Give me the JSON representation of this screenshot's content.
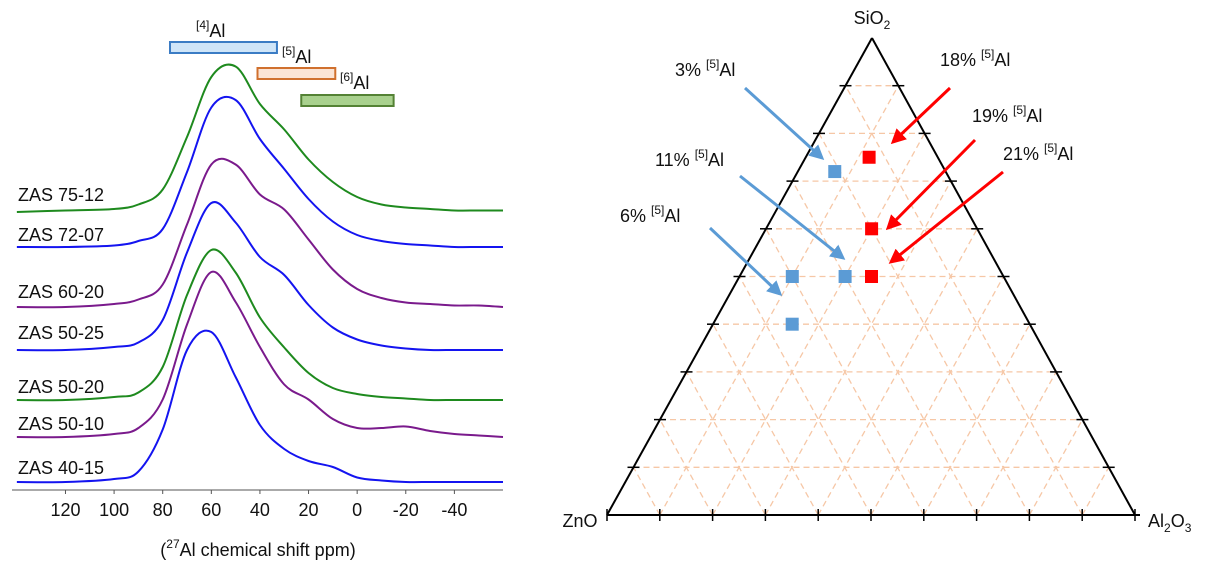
{
  "chart_data": [
    {
      "type": "spectra",
      "x": [
        140,
        120,
        100,
        90,
        80,
        70,
        60,
        50,
        40,
        30,
        20,
        10,
        0,
        -10,
        -20,
        -30,
        -40,
        -50,
        -60
      ],
      "xlim": [
        142,
        -60
      ],
      "xticks": [
        120,
        100,
        80,
        60,
        40,
        20,
        0,
        -20,
        -40
      ],
      "xlabel": [
        "(",
        "27",
        "Al chemical shift ppm)"
      ],
      "series": [
        {
          "name": "ZAS 75-12",
          "color": "#1e8a1e",
          "values": [
            0,
            0.01,
            0.02,
            0.05,
            0.15,
            0.5,
            0.9,
            0.97,
            0.72,
            0.55,
            0.35,
            0.2,
            0.1,
            0.05,
            0.03,
            0.02,
            0.01,
            0.01,
            0.01
          ]
        },
        {
          "name": "ZAS 72-07",
          "color": "#1414f0",
          "values": [
            0,
            0,
            0.01,
            0.04,
            0.12,
            0.5,
            0.93,
            0.98,
            0.72,
            0.52,
            0.32,
            0.17,
            0.08,
            0.04,
            0.02,
            0.01,
            0,
            0,
            0
          ]
        },
        {
          "name": "ZAS 60-20",
          "color": "#7a1a8c",
          "values": [
            0,
            0,
            0.02,
            0.05,
            0.15,
            0.55,
            0.95,
            0.95,
            0.75,
            0.65,
            0.45,
            0.25,
            0.12,
            0.06,
            0.03,
            0.02,
            0.01,
            0.01,
            0
          ]
        },
        {
          "name": "ZAS 50-25",
          "color": "#1414f0",
          "values": [
            0,
            0,
            0.02,
            0.05,
            0.2,
            0.65,
            0.98,
            0.85,
            0.62,
            0.5,
            0.3,
            0.15,
            0.07,
            0.03,
            0.01,
            0,
            0,
            0,
            0
          ]
        },
        {
          "name": "ZAS 50-20",
          "color": "#1e8a1e",
          "values": [
            0,
            0,
            0.02,
            0.05,
            0.22,
            0.7,
            1.0,
            0.85,
            0.55,
            0.35,
            0.18,
            0.08,
            0.04,
            0.02,
            0.01,
            0,
            0,
            0,
            0
          ]
        },
        {
          "name": "ZAS 50-10",
          "color": "#7a1a8c",
          "values": [
            0,
            0,
            0.02,
            0.06,
            0.25,
            0.75,
            1.1,
            0.9,
            0.6,
            0.35,
            0.25,
            0.12,
            0.06,
            0.06,
            0.07,
            0.04,
            0.02,
            0.01,
            0
          ]
        },
        {
          "name": "ZAS 40-15",
          "color": "#1414f0",
          "values": [
            0,
            0,
            0.02,
            0.07,
            0.35,
            0.88,
            1.0,
            0.7,
            0.38,
            0.22,
            0.14,
            0.1,
            0.03,
            0.01,
            0,
            0,
            0,
            0,
            0
          ]
        }
      ],
      "bars": [
        {
          "label": [
            "[4]",
            "Al"
          ],
          "range": [
            77,
            33
          ],
          "color": "#cfe5f8",
          "edge": "#3b7cc4"
        },
        {
          "label": [
            "[5]",
            "Al"
          ],
          "range": [
            41,
            9
          ],
          "color": "#fbe4d5",
          "edge": "#d0702e"
        },
        {
          "label": [
            "[6]",
            "Al"
          ],
          "range": [
            23,
            -15
          ],
          "color": "#a9d18e",
          "edge": "#548235"
        }
      ]
    },
    {
      "type": "ternary",
      "top_label": [
        "SiO",
        "2"
      ],
      "left_label": [
        "ZnO"
      ],
      "right_label": [
        "Al",
        "2",
        "O",
        "3"
      ],
      "divisions": 10,
      "grid": true,
      "grid_color": "#f6c7a6",
      "points": [
        {
          "sio2": 72,
          "al2o3": 7,
          "zno": 21,
          "color": "#5b9bd5"
        },
        {
          "sio2": 50,
          "al2o3": 20,
          "zno": 30,
          "color": "#5b9bd5"
        },
        {
          "sio2": 50,
          "al2o3": 10,
          "zno": 40,
          "color": "#5b9bd5"
        },
        {
          "sio2": 40,
          "al2o3": 15,
          "zno": 45,
          "color": "#5b9bd5"
        },
        {
          "sio2": 75,
          "al2o3": 12,
          "zno": 13,
          "color": "#ff0000"
        },
        {
          "sio2": 60,
          "al2o3": 20,
          "zno": 20,
          "color": "#ff0000"
        },
        {
          "sio2": 50,
          "al2o3": 25,
          "zno": 25,
          "color": "#ff0000"
        }
      ],
      "annotations": [
        {
          "text": [
            "3%",
            "[5]",
            "Al"
          ],
          "color": "#5b9bd5"
        },
        {
          "text": [
            "11%",
            "[5]",
            "Al"
          ],
          "color": "#5b9bd5"
        },
        {
          "text": [
            "6%",
            "[5]",
            "Al"
          ],
          "color": "#5b9bd5"
        },
        {
          "text": [
            "18%",
            "[5]",
            "Al"
          ],
          "color": "#ff0000"
        },
        {
          "text": [
            "19%",
            "[5]",
            "Al"
          ],
          "color": "#ff0000"
        },
        {
          "text": [
            "21%",
            "[5]",
            "Al"
          ],
          "color": "#ff0000"
        }
      ]
    }
  ]
}
